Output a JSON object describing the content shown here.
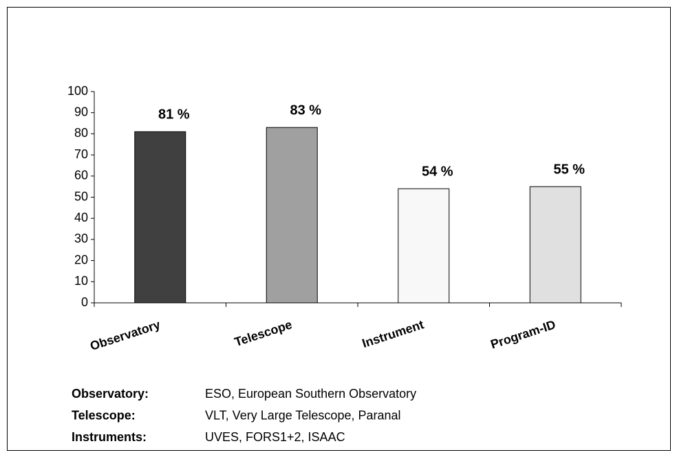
{
  "chart_data": {
    "type": "bar",
    "categories": [
      "Observatory",
      "Telescope",
      "Instrument",
      "Program-ID"
    ],
    "values": [
      81,
      83,
      54,
      55
    ],
    "value_labels": [
      "81 %",
      "83 %",
      "54 %",
      "55 %"
    ],
    "colors": [
      "#404040",
      "#a0a0a0",
      "#f8f8f8",
      "#e0e0e0"
    ],
    "ylim": [
      0,
      100
    ],
    "yticks": [
      0,
      10,
      20,
      30,
      40,
      50,
      60,
      70,
      80,
      90,
      100
    ],
    "notes": [
      {
        "term": "Observatory:",
        "text": "ESO,  European Southern Observatory"
      },
      {
        "term": "Telescope:",
        "text": "VLT,  Very Large Telescope,  Paranal"
      },
      {
        "term": "Instruments:",
        "text": "UVES,  FORS1+2,  ISAAC"
      }
    ]
  }
}
